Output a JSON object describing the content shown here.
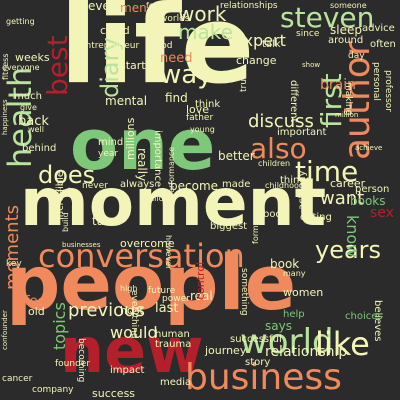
{
  "palette": {
    "background": "#2b2b2b",
    "cream": "#f3f5b8",
    "green": "#7ec87a",
    "light_green": "#b9e49c",
    "orange": "#f08a5d",
    "salmon": "#f5a06e",
    "red": "#b51f2b",
    "yellow": "#fbe68a",
    "pale": "#eef2a4"
  },
  "words": [
    {
      "text": "life",
      "color": "cream"
    },
    {
      "text": "one",
      "color": "green"
    },
    {
      "text": "moment",
      "color": "cream"
    },
    {
      "text": "people",
      "color": "orange"
    },
    {
      "text": "new",
      "color": "red"
    },
    {
      "text": "business",
      "color": "orange"
    },
    {
      "text": "world",
      "color": "light_green"
    },
    {
      "text": "like",
      "color": "cream"
    },
    {
      "text": "conversation",
      "color": "orange"
    },
    {
      "text": "author",
      "color": "orange"
    },
    {
      "text": "health",
      "color": "light_green"
    },
    {
      "text": "steven",
      "color": "light_green"
    },
    {
      "text": "time",
      "color": "cream"
    },
    {
      "text": "also",
      "color": "orange"
    },
    {
      "text": "way",
      "color": "cream"
    },
    {
      "text": "first",
      "color": "light_green"
    },
    {
      "text": "best",
      "color": "red"
    },
    {
      "text": "years",
      "color": "cream"
    },
    {
      "text": "does",
      "color": "cream"
    },
    {
      "text": "diary",
      "color": "light_green"
    },
    {
      "text": "work",
      "color": "cream"
    },
    {
      "text": "make",
      "color": "light_green"
    },
    {
      "text": "expert",
      "color": "cream"
    },
    {
      "text": "discuss",
      "color": "cream"
    },
    {
      "text": "want",
      "color": "cream"
    },
    {
      "text": "know",
      "color": "green"
    },
    {
      "text": "moments",
      "color": "orange"
    },
    {
      "text": "topics",
      "color": "green"
    },
    {
      "text": "previous",
      "color": "cream"
    },
    {
      "text": "would",
      "color": "cream"
    },
    {
      "text": "relationship",
      "color": "cream"
    },
    {
      "text": "brain",
      "color": "orange"
    },
    {
      "text": "need",
      "color": "orange"
    },
    {
      "text": "sex",
      "color": "red"
    },
    {
      "text": "books",
      "color": "green"
    },
    {
      "text": "mental",
      "color": "cream"
    },
    {
      "text": "back",
      "color": "cream"
    },
    {
      "text": "find",
      "color": "cream"
    },
    {
      "text": "become",
      "color": "cream"
    },
    {
      "text": "better",
      "color": "cream"
    },
    {
      "text": "really",
      "color": "cream"
    },
    {
      "text": "success",
      "color": "cream"
    },
    {
      "text": "journey",
      "color": "cream"
    },
    {
      "text": "story",
      "color": "cream"
    },
    {
      "text": "says",
      "color": "green"
    },
    {
      "text": "biggest",
      "color": "cream"
    },
    {
      "text": "take",
      "color": "cream"
    },
    {
      "text": "overcome",
      "color": "cream"
    },
    {
      "text": "feel",
      "color": "orange"
    },
    {
      "text": "host",
      "color": "cream"
    },
    {
      "text": "old",
      "color": "cream"
    },
    {
      "text": "last",
      "color": "cream"
    },
    {
      "text": "real",
      "color": "cream"
    },
    {
      "text": "control",
      "color": "red"
    },
    {
      "text": "human",
      "color": "cream"
    },
    {
      "text": "trauma",
      "color": "cream"
    },
    {
      "text": "women",
      "color": "cream"
    },
    {
      "text": "help",
      "color": "green"
    },
    {
      "text": "book",
      "color": "cream"
    },
    {
      "text": "career",
      "color": "cream"
    },
    {
      "text": "person",
      "color": "cream"
    },
    {
      "text": "believes",
      "color": "cream"
    },
    {
      "text": "choices",
      "color": "green"
    },
    {
      "text": "successful",
      "color": "cream"
    },
    {
      "text": "change",
      "color": "cream"
    },
    {
      "text": "love",
      "color": "cream"
    },
    {
      "text": "father",
      "color": "cream"
    },
    {
      "text": "men",
      "color": "orange"
    },
    {
      "text": "ever",
      "color": "cream"
    },
    {
      "text": "could",
      "color": "cream"
    },
    {
      "text": "start",
      "color": "cream"
    },
    {
      "text": "weeks",
      "color": "cream"
    },
    {
      "text": "behind",
      "color": "cream"
    },
    {
      "text": "social",
      "color": "cream"
    },
    {
      "text": "always",
      "color": "cream"
    },
    {
      "text": "incredible",
      "color": "cream"
    },
    {
      "text": "millions",
      "color": "cream"
    },
    {
      "text": "made",
      "color": "cream"
    },
    {
      "text": "things",
      "color": "cream"
    },
    {
      "text": "body",
      "color": "cream"
    },
    {
      "text": "dating",
      "color": "cream"
    },
    {
      "text": "actually",
      "color": "cream"
    },
    {
      "text": "media",
      "color": "cream"
    },
    {
      "text": "company",
      "color": "cream"
    },
    {
      "text": "impact",
      "color": "cream"
    },
    {
      "text": "power",
      "color": "cream"
    },
    {
      "text": "future",
      "color": "cream"
    },
    {
      "text": "everything",
      "color": "cream"
    },
    {
      "text": "something",
      "color": "cream"
    },
    {
      "text": "becoming",
      "color": "cream"
    },
    {
      "text": "founder",
      "color": "cream"
    },
    {
      "text": "cancer",
      "color": "cream"
    },
    {
      "text": "key",
      "color": "cream"
    },
    {
      "text": "high",
      "color": "cream"
    },
    {
      "text": "good",
      "color": "cream"
    },
    {
      "text": "think",
      "color": "cream"
    },
    {
      "text": "mind",
      "color": "cream"
    },
    {
      "text": "year",
      "color": "cream"
    },
    {
      "text": "importance",
      "color": "cream"
    },
    {
      "text": "performance",
      "color": "cream"
    },
    {
      "text": "truth",
      "color": "cream"
    },
    {
      "text": "children",
      "color": "cream"
    },
    {
      "text": "childhood",
      "color": "cream"
    },
    {
      "text": "important",
      "color": "cream"
    },
    {
      "text": "different",
      "color": "cream"
    },
    {
      "text": "making",
      "color": "cream"
    },
    {
      "text": "talk",
      "color": "cream"
    },
    {
      "text": "since",
      "color": "cream"
    },
    {
      "text": "sleep",
      "color": "cream"
    },
    {
      "text": "advice",
      "color": "cream"
    },
    {
      "text": "around",
      "color": "cream"
    },
    {
      "text": "personal",
      "color": "cream"
    },
    {
      "text": "professor",
      "color": "cream"
    },
    {
      "text": "often",
      "color": "cream"
    },
    {
      "text": "entrepreneur",
      "color": "cream"
    },
    {
      "text": "fitness",
      "color": "cream"
    },
    {
      "text": "everyone",
      "color": "cream"
    },
    {
      "text": "much",
      "color": "cream"
    },
    {
      "text": "getting",
      "color": "cream"
    },
    {
      "text": "food",
      "color": "cream"
    },
    {
      "text": "worlds",
      "color": "cream"
    },
    {
      "text": "relationships",
      "color": "cream"
    },
    {
      "text": "someone",
      "color": "cream"
    },
    {
      "text": "day",
      "color": "cream"
    },
    {
      "text": "show",
      "color": "cream"
    },
    {
      "text": "million",
      "color": "cream"
    },
    {
      "text": "achieve",
      "color": "cream"
    },
    {
      "text": "young",
      "color": "cream"
    },
    {
      "text": "however",
      "color": "cream"
    },
    {
      "text": "building",
      "color": "cream"
    },
    {
      "text": "never",
      "color": "cream"
    },
    {
      "text": "build",
      "color": "cream"
    },
    {
      "text": "businesses",
      "color": "cream"
    },
    {
      "text": "confounder",
      "color": "cream"
    },
    {
      "text": "former",
      "color": "cream"
    },
    {
      "text": "many",
      "color": "cream"
    },
    {
      "text": "happiness",
      "color": "cream"
    },
    {
      "text": "well",
      "color": "cream"
    },
    {
      "text": "give",
      "color": "cream"
    }
  ]
}
